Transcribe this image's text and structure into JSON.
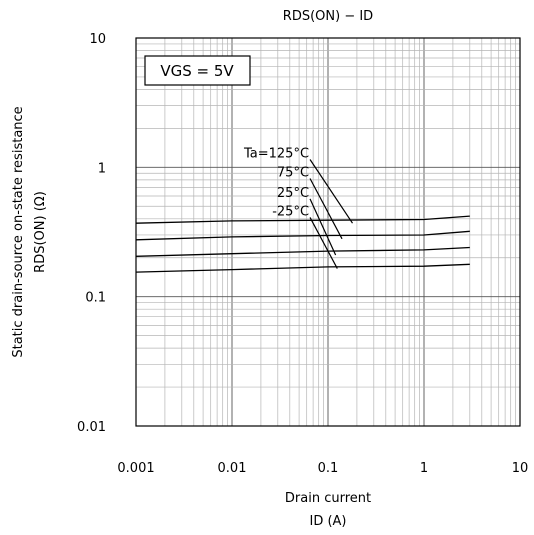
{
  "chart_data": {
    "type": "line",
    "title": "RDS(ON) − ID",
    "xlabel": [
      "Drain current",
      "ID (A)"
    ],
    "ylabel": [
      "Static drain-source on-state resistance",
      "RDS(ON) (Ω)"
    ],
    "x_scale": "log",
    "y_scale": "log",
    "xlim": [
      0.001,
      10
    ],
    "ylim": [
      0.01,
      10
    ],
    "x_ticks": [
      0.001,
      0.01,
      0.1,
      1,
      10
    ],
    "x_tick_labels": [
      "0.001",
      "0.01",
      "0.1",
      "1",
      "10"
    ],
    "y_ticks": [
      0.01,
      0.1,
      1,
      10
    ],
    "y_tick_labels": [
      "0.01",
      "0.1",
      "1",
      "10"
    ],
    "grid": true,
    "condition_label": "VGS = 5V",
    "series": [
      {
        "name": "Ta=125°C",
        "x": [
          0.001,
          0.01,
          0.1,
          1,
          3
        ],
        "y": [
          0.37,
          0.385,
          0.39,
          0.395,
          0.42
        ]
      },
      {
        "name": "75°C",
        "x": [
          0.001,
          0.01,
          0.1,
          1,
          3
        ],
        "y": [
          0.275,
          0.29,
          0.297,
          0.3,
          0.32
        ]
      },
      {
        "name": "25°C",
        "x": [
          0.001,
          0.01,
          0.1,
          1,
          3
        ],
        "y": [
          0.205,
          0.215,
          0.225,
          0.23,
          0.24
        ]
      },
      {
        "name": "-25°C",
        "x": [
          0.001,
          0.01,
          0.1,
          1,
          3
        ],
        "y": [
          0.155,
          0.162,
          0.17,
          0.172,
          0.178
        ]
      }
    ],
    "annotation_leaders": [
      {
        "label": "Ta=125°C",
        "from": [
          0.065,
          1.15
        ],
        "to": [
          0.18,
          0.37
        ]
      },
      {
        "label": "75°C",
        "from": [
          0.065,
          0.82
        ],
        "to": [
          0.14,
          0.28
        ]
      },
      {
        "label": "25°C",
        "from": [
          0.065,
          0.57
        ],
        "to": [
          0.12,
          0.21
        ]
      },
      {
        "label": "-25°C",
        "from": [
          0.065,
          0.41
        ],
        "to": [
          0.125,
          0.165
        ]
      }
    ]
  }
}
